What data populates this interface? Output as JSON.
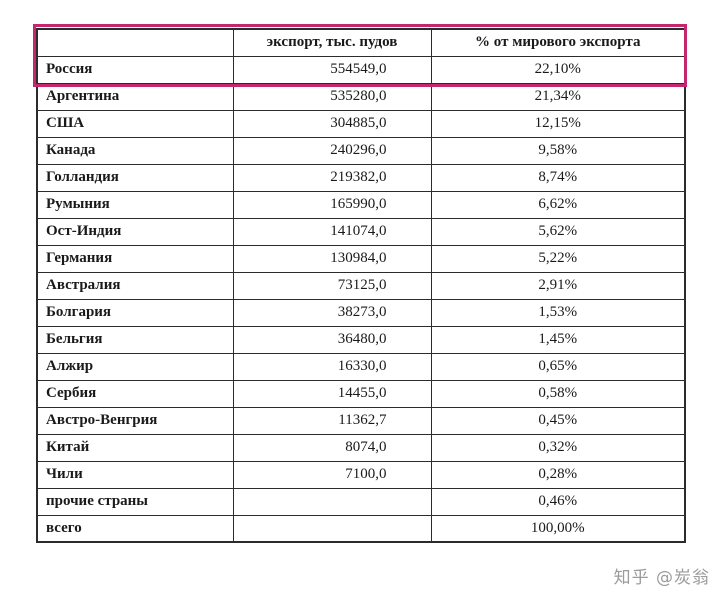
{
  "table": {
    "headers": {
      "country": "",
      "export": "экспорт, тыс. пудов",
      "share": "% от мирового экспорта"
    },
    "rows": [
      {
        "country": "Россия",
        "export": "554549,0",
        "share": "22,10%"
      },
      {
        "country": "Аргентина",
        "export": "535280,0",
        "share": "21,34%"
      },
      {
        "country": "США",
        "export": "304885,0",
        "share": "12,15%"
      },
      {
        "country": "Канада",
        "export": "240296,0",
        "share": "9,58%"
      },
      {
        "country": "Голландия",
        "export": "219382,0",
        "share": "8,74%"
      },
      {
        "country": "Румыния",
        "export": "165990,0",
        "share": "6,62%"
      },
      {
        "country": "Ост-Индия",
        "export": "141074,0",
        "share": "5,62%"
      },
      {
        "country": "Германия",
        "export": "130984,0",
        "share": "5,22%"
      },
      {
        "country": "Австралия",
        "export": "73125,0",
        "share": "2,91%"
      },
      {
        "country": "Болгария",
        "export": "38273,0",
        "share": "1,53%"
      },
      {
        "country": "Бельгия",
        "export": "36480,0",
        "share": "1,45%"
      },
      {
        "country": "Алжир",
        "export": "16330,0",
        "share": "0,65%"
      },
      {
        "country": "Сербия",
        "export": "14455,0",
        "share": "0,58%"
      },
      {
        "country": "Австро-Венгрия",
        "export": "11362,7",
        "share": "0,45%"
      },
      {
        "country": "Китай",
        "export": "8074,0",
        "share": "0,32%"
      },
      {
        "country": "Чили",
        "export": "7100,0",
        "share": "0,28%"
      },
      {
        "country": "прочие страны",
        "export": "",
        "share": "0,46%"
      },
      {
        "country": "всего",
        "export": "",
        "share": "100,00%"
      }
    ]
  },
  "highlight": {
    "color": "#c5276f",
    "covers": "header row and Россия row"
  },
  "watermark": {
    "text": "知乎 @炭翁",
    "color": "#9b9b9b"
  },
  "chart_data": {
    "type": "table",
    "columns": [
      "",
      "экспорт, тыс. пудов",
      "% от мирового экспорта"
    ],
    "rows": [
      [
        "Россия",
        554549.0,
        22.1
      ],
      [
        "Аргентина",
        535280.0,
        21.34
      ],
      [
        "США",
        304885.0,
        12.15
      ],
      [
        "Канада",
        240296.0,
        9.58
      ],
      [
        "Голландия",
        219382.0,
        8.74
      ],
      [
        "Румыния",
        165990.0,
        6.62
      ],
      [
        "Ост-Индия",
        141074.0,
        5.62
      ],
      [
        "Германия",
        130984.0,
        5.22
      ],
      [
        "Австралия",
        73125.0,
        2.91
      ],
      [
        "Болгария",
        38273.0,
        1.53
      ],
      [
        "Бельгия",
        36480.0,
        1.45
      ],
      [
        "Алжир",
        16330.0,
        0.65
      ],
      [
        "Сербия",
        14455.0,
        0.58
      ],
      [
        "Австро-Венгрия",
        11362.7,
        0.45
      ],
      [
        "Китай",
        8074.0,
        0.32
      ],
      [
        "Чили",
        7100.0,
        0.28
      ],
      [
        "прочие страны",
        null,
        0.46
      ],
      [
        "всего",
        null,
        100.0
      ]
    ],
    "highlighted_row": "Россия",
    "units": "тыс. пудов"
  }
}
